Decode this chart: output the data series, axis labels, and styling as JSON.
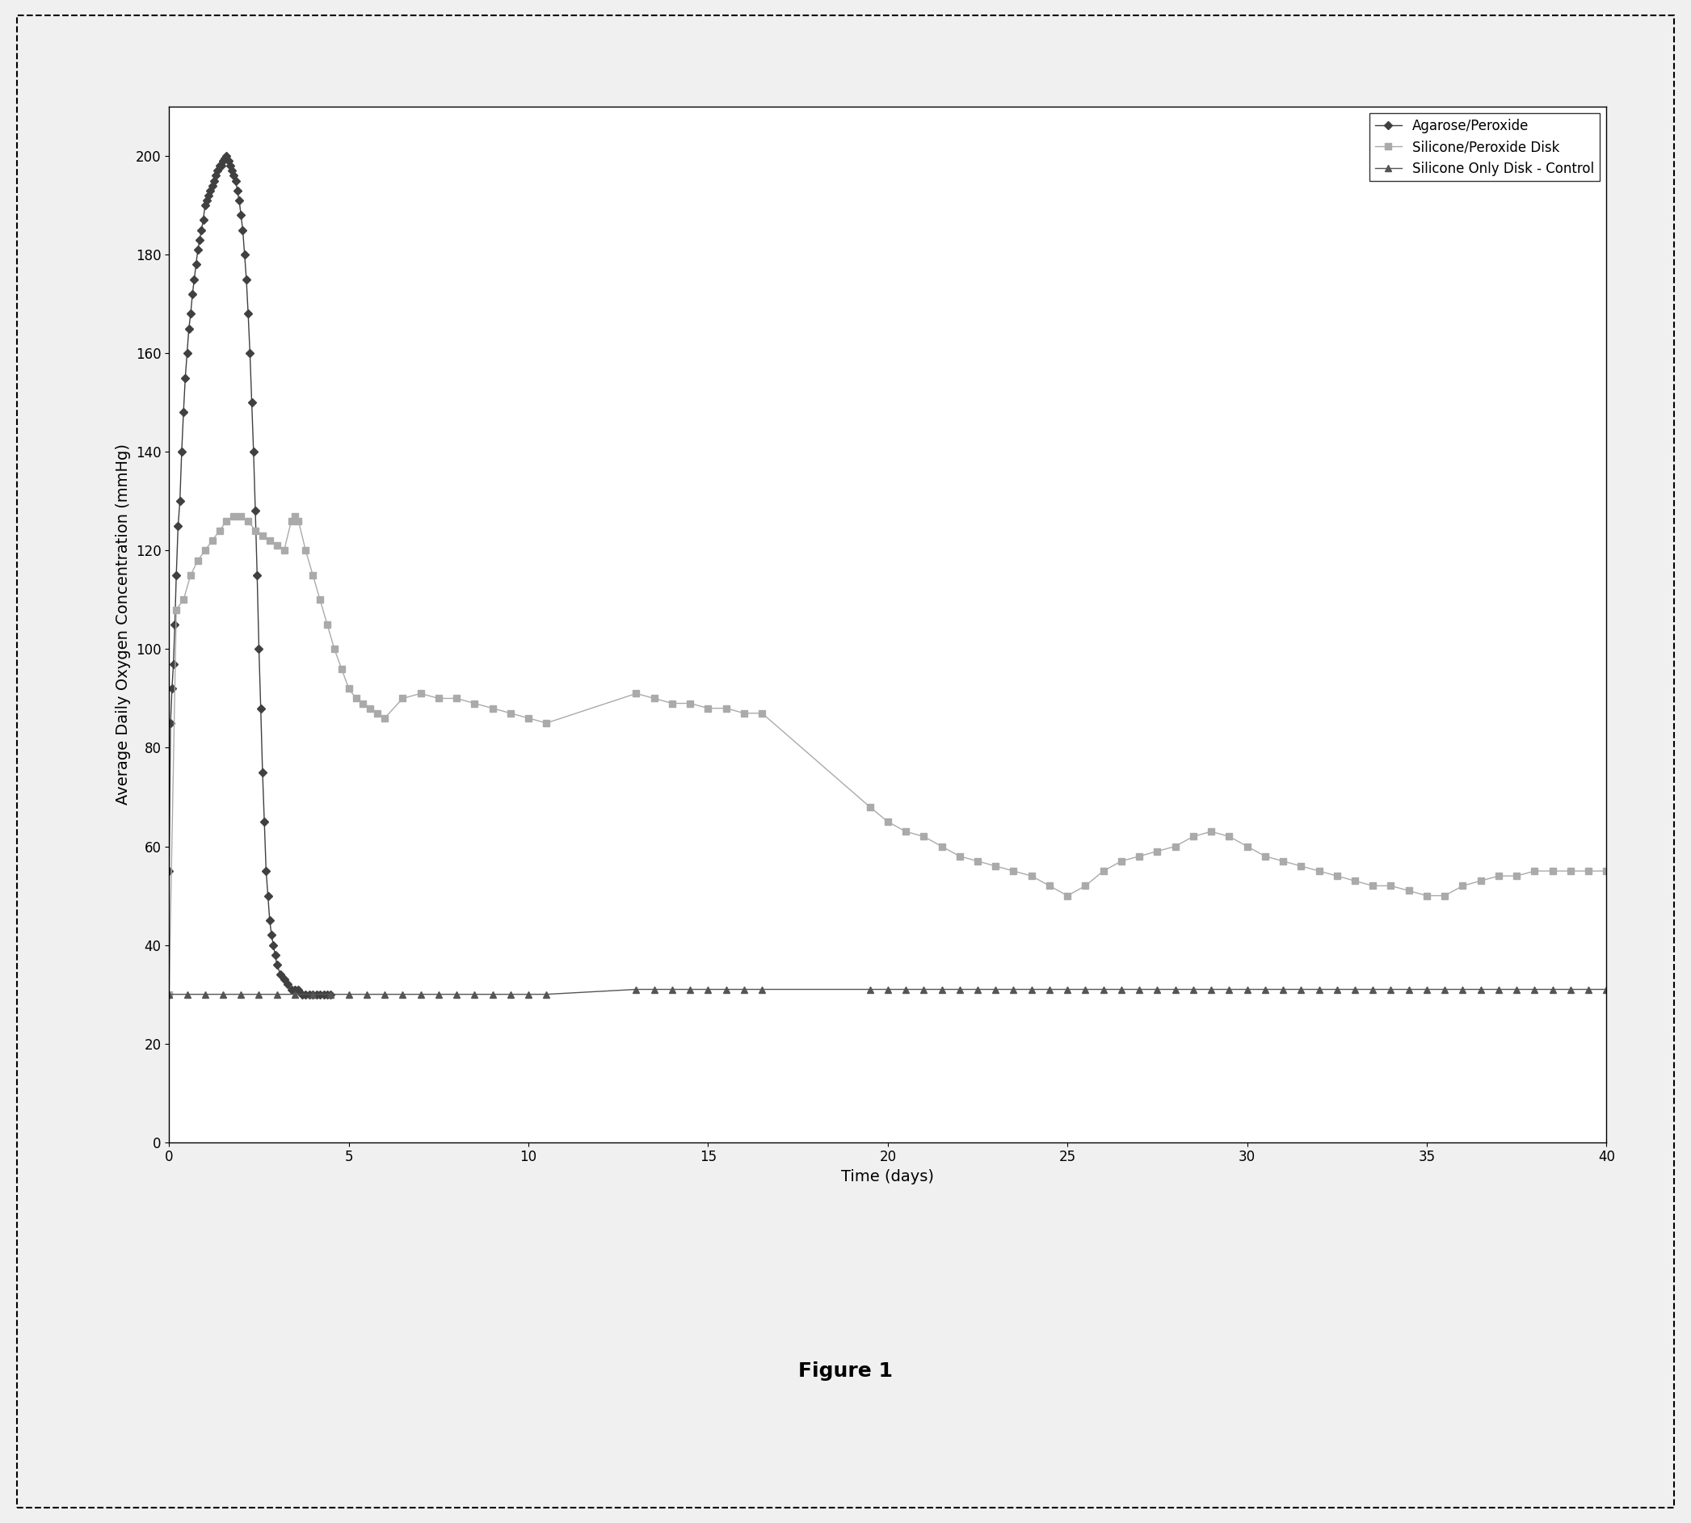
{
  "title": "Figure 1",
  "xlabel": "Time (days)",
  "ylabel": "Average Daily Oxygen Concentration (mmHg)",
  "xlim": [
    0,
    40
  ],
  "ylim": [
    0,
    210
  ],
  "yticks": [
    0,
    20,
    40,
    60,
    80,
    100,
    120,
    140,
    160,
    180,
    200
  ],
  "xticks": [
    0,
    5,
    10,
    15,
    20,
    25,
    30,
    35,
    40
  ],
  "agarose_peroxide": {
    "x": [
      0.0,
      0.04,
      0.08,
      0.12,
      0.16,
      0.2,
      0.25,
      0.3,
      0.35,
      0.4,
      0.45,
      0.5,
      0.55,
      0.6,
      0.65,
      0.7,
      0.75,
      0.8,
      0.85,
      0.9,
      0.95,
      1.0,
      1.05,
      1.1,
      1.15,
      1.2,
      1.25,
      1.3,
      1.35,
      1.4,
      1.45,
      1.5,
      1.55,
      1.6,
      1.65,
      1.7,
      1.75,
      1.8,
      1.85,
      1.9,
      1.95,
      2.0,
      2.05,
      2.1,
      2.15,
      2.2,
      2.25,
      2.3,
      2.35,
      2.4,
      2.45,
      2.5,
      2.55,
      2.6,
      2.65,
      2.7,
      2.75,
      2.8,
      2.85,
      2.9,
      2.95,
      3.0,
      3.1,
      3.2,
      3.3,
      3.4,
      3.5,
      3.6,
      3.7,
      3.8,
      3.9,
      4.0,
      4.1,
      4.2,
      4.3,
      4.4,
      4.5
    ],
    "y": [
      55,
      85,
      92,
      97,
      105,
      115,
      125,
      130,
      140,
      148,
      155,
      160,
      165,
      168,
      172,
      175,
      178,
      181,
      183,
      185,
      187,
      190,
      191,
      192,
      193,
      194,
      195,
      196,
      197,
      198,
      198,
      199,
      199.5,
      200,
      199,
      198,
      197,
      196,
      195,
      193,
      191,
      188,
      185,
      180,
      175,
      168,
      160,
      150,
      140,
      128,
      115,
      100,
      88,
      75,
      65,
      55,
      50,
      45,
      42,
      40,
      38,
      36,
      34,
      33,
      32,
      31,
      31,
      31,
      30,
      30,
      30,
      30,
      30,
      30,
      30,
      30,
      30
    ],
    "color": "#404040",
    "marker": "D",
    "markersize": 5,
    "linewidth": 1.0,
    "label": "Agarose/Peroxide"
  },
  "silicone_peroxide": {
    "x": [
      0.0,
      0.2,
      0.4,
      0.6,
      0.8,
      1.0,
      1.2,
      1.4,
      1.6,
      1.8,
      2.0,
      2.2,
      2.4,
      2.6,
      2.8,
      3.0,
      3.2,
      3.4,
      3.5,
      3.6,
      3.8,
      4.0,
      4.2,
      4.4,
      4.6,
      4.8,
      5.0,
      5.2,
      5.4,
      5.6,
      5.8,
      6.0,
      6.5,
      7.0,
      7.5,
      8.0,
      8.5,
      9.0,
      9.5,
      10.0,
      10.5,
      13.0,
      13.5,
      14.0,
      14.5,
      15.0,
      15.5,
      16.0,
      16.5,
      19.5,
      20.0,
      20.5,
      21.0,
      21.5,
      22.0,
      22.5,
      23.0,
      23.5,
      24.0,
      24.5,
      25.0,
      25.5,
      26.0,
      26.5,
      27.0,
      27.5,
      28.0,
      28.5,
      29.0,
      29.5,
      30.0,
      30.5,
      31.0,
      31.5,
      32.0,
      32.5,
      33.0,
      33.5,
      34.0,
      34.5,
      35.0,
      35.5,
      36.0,
      36.5,
      37.0,
      37.5,
      38.0,
      38.5,
      39.0,
      39.5,
      40.0
    ],
    "y": [
      30,
      108,
      110,
      115,
      118,
      120,
      122,
      124,
      126,
      127,
      127,
      126,
      124,
      123,
      122,
      121,
      120,
      126,
      127,
      126,
      120,
      115,
      110,
      105,
      100,
      96,
      92,
      90,
      89,
      88,
      87,
      86,
      90,
      91,
      90,
      90,
      89,
      88,
      87,
      86,
      85,
      91,
      90,
      89,
      89,
      88,
      88,
      87,
      87,
      68,
      65,
      63,
      62,
      60,
      58,
      57,
      56,
      55,
      54,
      52,
      50,
      52,
      55,
      57,
      58,
      59,
      60,
      62,
      63,
      62,
      60,
      58,
      57,
      56,
      55,
      54,
      53,
      52,
      52,
      51,
      50,
      50,
      52,
      53,
      54,
      54,
      55,
      55,
      55,
      55,
      55
    ],
    "color": "#aaaaaa",
    "marker": "s",
    "markersize": 6,
    "linewidth": 1.0,
    "label": "Silicone/Peroxide Disk"
  },
  "silicone_control": {
    "x": [
      0.0,
      0.5,
      1.0,
      1.5,
      2.0,
      2.5,
      3.0,
      3.5,
      4.0,
      4.5,
      5.0,
      5.5,
      6.0,
      6.5,
      7.0,
      7.5,
      8.0,
      8.5,
      9.0,
      9.5,
      10.0,
      10.5,
      13.0,
      13.5,
      14.0,
      14.5,
      15.0,
      15.5,
      16.0,
      16.5,
      19.5,
      20.0,
      20.5,
      21.0,
      21.5,
      22.0,
      22.5,
      23.0,
      23.5,
      24.0,
      24.5,
      25.0,
      25.5,
      26.0,
      26.5,
      27.0,
      27.5,
      28.0,
      28.5,
      29.0,
      29.5,
      30.0,
      30.5,
      31.0,
      31.5,
      32.0,
      32.5,
      33.0,
      33.5,
      34.0,
      34.5,
      35.0,
      35.5,
      36.0,
      36.5,
      37.0,
      37.5,
      38.0,
      38.5,
      39.0,
      39.5,
      40.0
    ],
    "y": [
      30,
      30,
      30,
      30,
      30,
      30,
      30,
      30,
      30,
      30,
      30,
      30,
      30,
      30,
      30,
      30,
      30,
      30,
      30,
      30,
      30,
      30,
      31,
      31,
      31,
      31,
      31,
      31,
      31,
      31,
      31,
      31,
      31,
      31,
      31,
      31,
      31,
      31,
      31,
      31,
      31,
      31,
      31,
      31,
      31,
      31,
      31,
      31,
      31,
      31,
      31,
      31,
      31,
      31,
      31,
      31,
      31,
      31,
      31,
      31,
      31,
      31,
      31,
      31,
      31,
      31,
      31,
      31,
      31,
      31,
      31,
      31
    ],
    "color": "#555555",
    "marker": "^",
    "markersize": 6,
    "linewidth": 1.0,
    "label": "Silicone Only Disk - Control"
  },
  "legend_loc": "upper right",
  "figure_label": "Figure 1",
  "figure_label_fontsize": 18,
  "figure_label_fontweight": "bold",
  "axis_label_fontsize": 14,
  "tick_fontsize": 12,
  "background_color": "#ffffff",
  "outer_background": "#f0f0f0"
}
